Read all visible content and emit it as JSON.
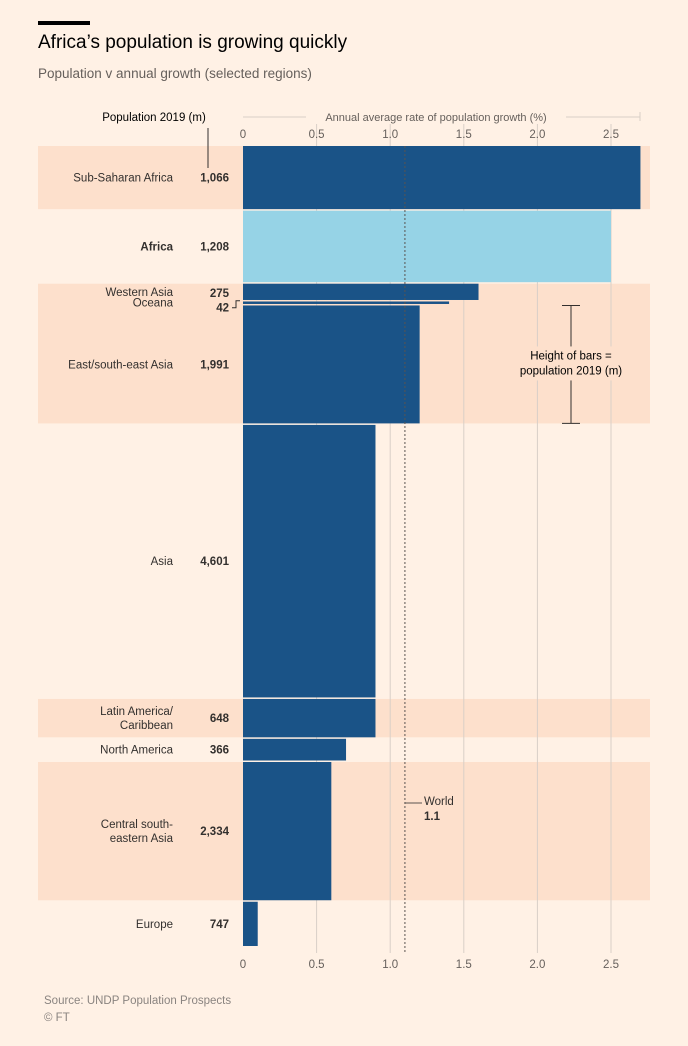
{
  "title": "Africa’s population is growing quickly",
  "subtitle": "Population v annual growth (selected regions)",
  "source": "Source: UNDP Population Prospects",
  "copyright": "© FT",
  "colors": {
    "background": "#fff1e5",
    "band": "#fde0cc",
    "bar_dark": "#1a5387",
    "bar_light": "#96d3e6",
    "grid": "#d9cfc7",
    "text": "#33302e",
    "muted": "#66605c"
  },
  "chart_data": {
    "type": "bar",
    "orientation": "horizontal",
    "title": "Africa’s population is growing quickly",
    "subtitle": "Population v annual growth (selected regions)",
    "xlabel": "Annual average rate of population growth (%)",
    "ylabel": "Population 2019 (m)",
    "xlim": [
      0,
      2.6
    ],
    "x_ticks": [
      0,
      0.5,
      1.0,
      1.5,
      2.0,
      2.5
    ],
    "x_tick_labels": [
      "0",
      "0.5",
      "1.0",
      "1.5",
      "2.0",
      "2.5"
    ],
    "bar_height_encodes": "population 2019 (m)",
    "categories": [
      "Sub-Saharan Africa",
      "Africa",
      "Western Asia",
      "Oceana",
      "East/south-east Asia",
      "Asia",
      "Latin America/ Caribbean",
      "North America",
      "Central south- eastern Asia",
      "Europe"
    ],
    "growth_rate": [
      2.7,
      2.5,
      1.6,
      1.4,
      1.2,
      0.9,
      0.9,
      0.7,
      0.6,
      0.1
    ],
    "population": [
      1066,
      1208,
      275,
      42,
      1991,
      4601,
      648,
      366,
      2334,
      747
    ],
    "population_labels": [
      "1,066",
      "1,208",
      "275",
      "42",
      "1,991",
      "4,601",
      "648",
      "366",
      "2,334",
      "747"
    ],
    "highlight": "Africa",
    "reference_line": {
      "name": "World",
      "value": 1.1,
      "label": "World",
      "value_label": "1.1"
    },
    "annotation": "Height of bars = population 2019 (m)"
  }
}
